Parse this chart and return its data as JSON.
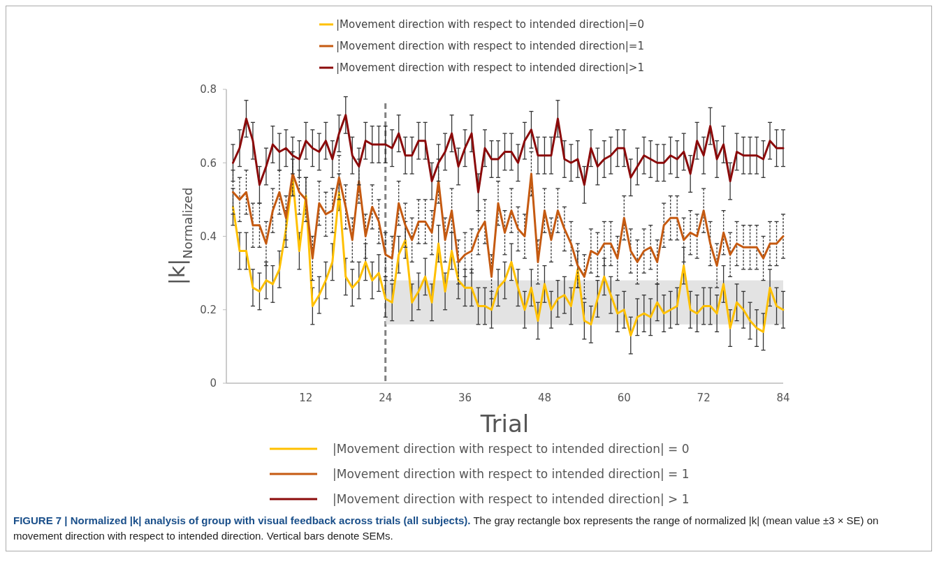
{
  "chart_data": {
    "type": "line",
    "title": "FIGURE 7 | Normalized |k| analysis of group with visual feedback across trials (all subjects).",
    "xlabel": "Trial",
    "ylabel": "|k|$_{Normalized}$",
    "x": [
      1,
      2,
      3,
      4,
      5,
      6,
      7,
      8,
      9,
      10,
      11,
      12,
      13,
      14,
      15,
      16,
      17,
      18,
      19,
      20,
      21,
      22,
      23,
      24,
      25,
      26,
      27,
      28,
      29,
      30,
      31,
      32,
      33,
      34,
      35,
      36,
      37,
      38,
      39,
      40,
      41,
      42,
      43,
      44,
      45,
      46,
      47,
      48,
      49,
      50,
      51,
      52,
      53,
      54,
      55,
      56,
      57,
      58,
      59,
      60,
      61,
      62,
      63,
      64,
      65,
      66,
      67,
      68,
      69,
      70,
      71,
      72,
      73,
      74,
      75,
      76,
      77,
      78,
      79,
      80,
      81,
      82,
      83,
      84
    ],
    "xlim": [
      0,
      84
    ],
    "xticks": [
      12,
      24,
      36,
      48,
      60,
      72,
      84
    ],
    "ylim": [
      0,
      0.8
    ],
    "yticks": [
      0,
      0.2,
      0.4,
      0.6,
      0.8
    ],
    "grid": false,
    "legend": "top",
    "marker": "none",
    "line_style": "solid",
    "series": [
      {
        "name": "|Movement direction with respect to intended direction|=0",
        "color": "#ffc000",
        "values": [
          0.48,
          0.36,
          0.36,
          0.26,
          0.25,
          0.28,
          0.27,
          0.31,
          0.42,
          0.56,
          0.36,
          0.51,
          0.21,
          0.24,
          0.28,
          0.33,
          0.52,
          0.29,
          0.26,
          0.28,
          0.33,
          0.28,
          0.3,
          0.23,
          0.22,
          0.35,
          0.39,
          0.22,
          0.25,
          0.29,
          0.22,
          0.38,
          0.25,
          0.36,
          0.28,
          0.26,
          0.26,
          0.21,
          0.21,
          0.2,
          0.26,
          0.28,
          0.33,
          0.26,
          0.2,
          0.26,
          0.17,
          0.27,
          0.2,
          0.23,
          0.24,
          0.21,
          0.31,
          0.17,
          0.16,
          0.23,
          0.29,
          0.24,
          0.19,
          0.2,
          0.13,
          0.18,
          0.19,
          0.18,
          0.22,
          0.19,
          0.2,
          0.21,
          0.32,
          0.2,
          0.19,
          0.21,
          0.21,
          0.19,
          0.27,
          0.15,
          0.22,
          0.2,
          0.17,
          0.15,
          0.14,
          0.26,
          0.21,
          0.2
        ],
        "errors": [
          0.05,
          0.05,
          0.05,
          0.05,
          0.05,
          0.05,
          0.05,
          0.05,
          0.05,
          0.05,
          0.05,
          0.05,
          0.05,
          0.05,
          0.05,
          0.05,
          0.05,
          0.05,
          0.05,
          0.05,
          0.05,
          0.05,
          0.05,
          0.05,
          0.05,
          0.05,
          0.05,
          0.05,
          0.05,
          0.05,
          0.05,
          0.05,
          0.05,
          0.05,
          0.05,
          0.05,
          0.05,
          0.05,
          0.05,
          0.05,
          0.05,
          0.05,
          0.05,
          0.05,
          0.05,
          0.05,
          0.05,
          0.05,
          0.05,
          0.05,
          0.05,
          0.05,
          0.05,
          0.05,
          0.05,
          0.05,
          0.05,
          0.05,
          0.05,
          0.05,
          0.05,
          0.05,
          0.05,
          0.05,
          0.05,
          0.05,
          0.05,
          0.05,
          0.05,
          0.05,
          0.05,
          0.05,
          0.05,
          0.05,
          0.05,
          0.05,
          0.05,
          0.05,
          0.05,
          0.05,
          0.05,
          0.05,
          0.05,
          0.05
        ]
      },
      {
        "name": "|Movement direction with respect to intended direction|=1",
        "color": "#c55a11",
        "values": [
          0.52,
          0.5,
          0.52,
          0.43,
          0.43,
          0.38,
          0.47,
          0.52,
          0.45,
          0.57,
          0.52,
          0.5,
          0.34,
          0.49,
          0.46,
          0.47,
          0.56,
          0.48,
          0.39,
          0.55,
          0.4,
          0.48,
          0.44,
          0.35,
          0.34,
          0.49,
          0.43,
          0.39,
          0.44,
          0.44,
          0.41,
          0.55,
          0.39,
          0.47,
          0.33,
          0.35,
          0.36,
          0.41,
          0.44,
          0.29,
          0.49,
          0.41,
          0.47,
          0.42,
          0.4,
          0.57,
          0.33,
          0.47,
          0.39,
          0.47,
          0.42,
          0.38,
          0.32,
          0.29,
          0.36,
          0.35,
          0.38,
          0.38,
          0.34,
          0.45,
          0.36,
          0.33,
          0.36,
          0.37,
          0.33,
          0.43,
          0.45,
          0.45,
          0.39,
          0.41,
          0.4,
          0.47,
          0.38,
          0.32,
          0.41,
          0.35,
          0.38,
          0.37,
          0.37,
          0.37,
          0.34,
          0.38,
          0.38,
          0.4
        ],
        "errors": [
          0.06,
          0.06,
          0.06,
          0.06,
          0.06,
          0.06,
          0.06,
          0.06,
          0.06,
          0.06,
          0.06,
          0.06,
          0.06,
          0.06,
          0.06,
          0.06,
          0.06,
          0.06,
          0.06,
          0.06,
          0.06,
          0.06,
          0.06,
          0.06,
          0.06,
          0.06,
          0.06,
          0.06,
          0.06,
          0.06,
          0.06,
          0.06,
          0.06,
          0.06,
          0.06,
          0.06,
          0.06,
          0.06,
          0.06,
          0.06,
          0.06,
          0.06,
          0.06,
          0.06,
          0.06,
          0.06,
          0.06,
          0.06,
          0.06,
          0.06,
          0.06,
          0.06,
          0.06,
          0.06,
          0.06,
          0.06,
          0.06,
          0.06,
          0.06,
          0.06,
          0.06,
          0.06,
          0.06,
          0.06,
          0.06,
          0.06,
          0.06,
          0.06,
          0.06,
          0.06,
          0.06,
          0.06,
          0.06,
          0.06,
          0.06,
          0.06,
          0.06,
          0.06,
          0.06,
          0.06,
          0.06,
          0.06,
          0.06,
          0.06
        ]
      },
      {
        "name": "|Movement direction with respect to intended direction|>1",
        "color": "#8b0a0a",
        "values": [
          0.6,
          0.64,
          0.72,
          0.66,
          0.54,
          0.59,
          0.65,
          0.63,
          0.64,
          0.62,
          0.61,
          0.66,
          0.64,
          0.63,
          0.66,
          0.61,
          0.68,
          0.73,
          0.62,
          0.59,
          0.66,
          0.65,
          0.65,
          0.65,
          0.64,
          0.68,
          0.62,
          0.62,
          0.66,
          0.66,
          0.55,
          0.6,
          0.63,
          0.68,
          0.59,
          0.64,
          0.68,
          0.52,
          0.64,
          0.61,
          0.61,
          0.63,
          0.63,
          0.6,
          0.66,
          0.69,
          0.62,
          0.62,
          0.62,
          0.72,
          0.61,
          0.6,
          0.61,
          0.54,
          0.64,
          0.59,
          0.61,
          0.62,
          0.64,
          0.64,
          0.56,
          0.59,
          0.62,
          0.61,
          0.6,
          0.6,
          0.62,
          0.61,
          0.63,
          0.57,
          0.66,
          0.62,
          0.7,
          0.61,
          0.65,
          0.55,
          0.63,
          0.62,
          0.62,
          0.62,
          0.61,
          0.66,
          0.64,
          0.64
        ],
        "errors": [
          0.05,
          0.05,
          0.05,
          0.05,
          0.05,
          0.05,
          0.05,
          0.05,
          0.05,
          0.05,
          0.05,
          0.05,
          0.05,
          0.05,
          0.05,
          0.05,
          0.05,
          0.05,
          0.05,
          0.05,
          0.05,
          0.05,
          0.05,
          0.05,
          0.05,
          0.05,
          0.05,
          0.05,
          0.05,
          0.05,
          0.05,
          0.05,
          0.05,
          0.05,
          0.05,
          0.05,
          0.05,
          0.05,
          0.05,
          0.05,
          0.05,
          0.05,
          0.05,
          0.05,
          0.05,
          0.05,
          0.05,
          0.05,
          0.05,
          0.05,
          0.05,
          0.05,
          0.05,
          0.05,
          0.05,
          0.05,
          0.05,
          0.05,
          0.05,
          0.05,
          0.05,
          0.05,
          0.05,
          0.05,
          0.05,
          0.05,
          0.05,
          0.05,
          0.05,
          0.05,
          0.05,
          0.05,
          0.05,
          0.05,
          0.05,
          0.05,
          0.05,
          0.05,
          0.05,
          0.05,
          0.05,
          0.05,
          0.05,
          0.05
        ]
      }
    ],
    "ref_lines": [
      {
        "axis": "x",
        "value": 24,
        "color": "#808080",
        "line_style": "dashed"
      }
    ],
    "bands": [
      {
        "axis": "y",
        "from": 0.16,
        "to": 0.28,
        "color": "#d9d9d9"
      }
    ],
    "annotations": [
      "|Movement direction with respect to intended direction| = 0",
      "|Movement direction with respect to intended direction| = 1",
      "|Movement direction with respect to intended direction| > 1",
      "The gray rectangle box represents the range of normalized |k| (mean value ±3 × SE) on movement direction with respect to intended direction. Vertical bars denote SEMs."
    ]
  }
}
